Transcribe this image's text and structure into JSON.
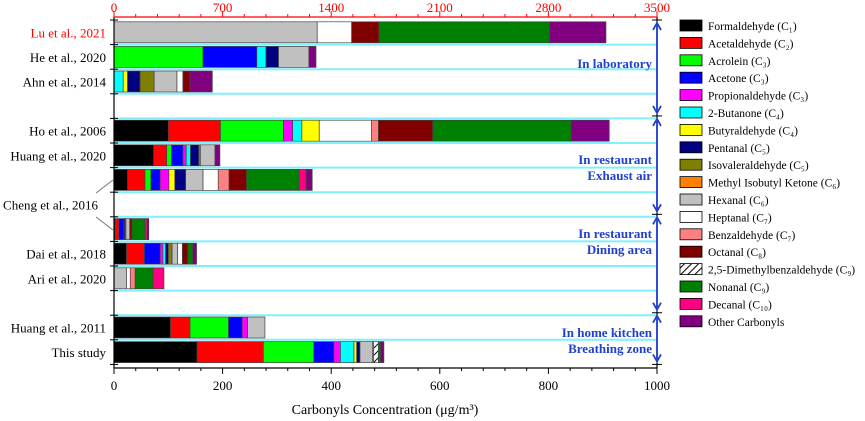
{
  "chart_data": {
    "type": "bar",
    "orientation": "horizontal-stacked",
    "xlabel": "Carbonyls Concentration (μg/m³)",
    "xlim_bottom": [
      0,
      1000
    ],
    "xticks_bottom": [
      "0",
      "200",
      "400",
      "600",
      "800",
      "1000"
    ],
    "xlim_top": [
      0,
      3500
    ],
    "xticks_top": [
      "0",
      "700",
      "1400",
      "2100",
      "2800",
      "3500"
    ],
    "top_axis_color": "#ff0000",
    "grid": false,
    "legend_position": "right",
    "compounds": [
      {
        "key": "form",
        "label": "Formaldehyde (C₁)",
        "color": "#000000"
      },
      {
        "key": "acet",
        "label": "Acetaldehyde (C₂)",
        "color": "#ff0000"
      },
      {
        "key": "acro",
        "label": "Acrolein (C₃)",
        "color": "#00ff00"
      },
      {
        "key": "acetone",
        "label": "Acetone (C₃)",
        "color": "#0000ff"
      },
      {
        "key": "prop",
        "label": "Propionaldehyde (C₃)",
        "color": "#ff00ff"
      },
      {
        "key": "buta",
        "label": "2-Butanone (C₄)",
        "color": "#00ffff"
      },
      {
        "key": "butyr",
        "label": "Butyraldehyde (C₄)",
        "color": "#ffff00"
      },
      {
        "key": "pent",
        "label": "Pentanal (C₅)",
        "color": "#000080"
      },
      {
        "key": "isov",
        "label": "Isovaleraldehyde (C₅)",
        "color": "#808000"
      },
      {
        "key": "mibk",
        "label": "Methyl Isobutyl Ketone (C₆)",
        "color": "#ff8000"
      },
      {
        "key": "hex",
        "label": "Hexanal (C₆)",
        "color": "#c0c0c0"
      },
      {
        "key": "hept",
        "label": "Heptanal (C₇)",
        "color": "#ffffff"
      },
      {
        "key": "benz",
        "label": "Benzaldehyde (C₇)",
        "color": "#ff8080"
      },
      {
        "key": "oct",
        "label": "Octanal (C₈)",
        "color": "#800000"
      },
      {
        "key": "dmb",
        "label": "2,5-Dimethylbenzaldehyde (C₉)",
        "color": "hatch"
      },
      {
        "key": "non",
        "label": "Nonanal (C₉)",
        "color": "#008000"
      },
      {
        "key": "dec",
        "label": "Decanal (C₁₀)",
        "color": "#ff0080"
      },
      {
        "key": "other",
        "label": "Other Carbonyls",
        "color": "#800080"
      }
    ],
    "studies": [
      {
        "label": "Lu et al., 2021",
        "axis": "top",
        "label_color": "#ff0000",
        "values": {
          "hex": 1310,
          "hept": 222,
          "oct": 176,
          "non": 1100,
          "other": 363
        }
      },
      {
        "label": "He et al., 2020",
        "axis": "bottom",
        "values": {
          "acro": 164,
          "acetone": 99,
          "buta": 17,
          "pent": 23,
          "hex": 56,
          "other": 13
        }
      },
      {
        "label": "Ahn et al., 2014",
        "axis": "bottom",
        "values": {
          "buta": 17,
          "butyr": 8,
          "pent": 23,
          "isov": 26,
          "hex": 42,
          "hept": 11,
          "oct": 13,
          "other": 41
        }
      },
      {
        "label": "Ho et al., 2006",
        "axis": "bottom",
        "values": {
          "form": 100,
          "acet": 96,
          "acro": 116,
          "prop": 17,
          "buta": 17,
          "butyr": 32,
          "hept": 96,
          "benz": 13,
          "oct": 100,
          "non": 255,
          "other": 70
        }
      },
      {
        "label": "Huang et al., 2020",
        "axis": "bottom",
        "values": {
          "form": 73,
          "acet": 24,
          "acro": 9,
          "acetone": 21,
          "prop": 6,
          "buta": 8,
          "pent": 15,
          "isov": 3,
          "hex": 27,
          "other": 9
        }
      },
      {
        "label": "Cheng et al., 2016",
        "axis": "bottom",
        "setting": "exhaust",
        "values": {
          "form": 25,
          "acet": 32,
          "acro": 11,
          "acetone": 17,
          "prop": 16,
          "butyr": 11,
          "pent": 20,
          "hex": 32,
          "hept": 28,
          "benz": 20,
          "oct": 32,
          "non": 97,
          "dec": 13,
          "other": 11
        }
      },
      {
        "label": "Cheng et al., 2016",
        "axis": "bottom",
        "setting": "dining",
        "values": {
          "form": 2,
          "acet": 7,
          "acetone": 9,
          "pent": 2,
          "isov": 2,
          "hex": 7,
          "oct": 4,
          "non": 24,
          "dec": 4,
          "other": 3
        }
      },
      {
        "label": "Dai et al., 2018",
        "axis": "bottom",
        "values": {
          "form": 23,
          "acet": 33,
          "acetone": 29,
          "prop": 5,
          "buta": 5,
          "pent": 5,
          "isov": 7,
          "hex": 10,
          "hept": 9,
          "oct": 10,
          "non": 9,
          "other": 7
        }
      },
      {
        "label": "Ari et al., 2020",
        "axis": "bottom",
        "values": {
          "hex": 23,
          "hept": 7,
          "benz": 9,
          "non": 33,
          "dec": 20
        }
      },
      {
        "label": "Huang et al., 2011",
        "axis": "bottom",
        "values": {
          "form": 104,
          "acet": 36,
          "acro": 71,
          "acetone": 25,
          "prop": 10,
          "hex": 32
        }
      },
      {
        "label": "This study",
        "axis": "bottom",
        "values": {
          "form": 153,
          "acet": 122,
          "acro": 93,
          "acetone": 37,
          "prop": 12,
          "buta": 25,
          "butyr": 5,
          "pent": 6,
          "hex": 23,
          "hept": 2,
          "dmb": 9,
          "non": 4,
          "other": 6
        }
      }
    ],
    "groups": [
      {
        "lines": [
          "In laboratory"
        ]
      },
      {
        "lines": [
          "In restaurant",
          "Exhaust air"
        ]
      },
      {
        "lines": [
          "In restaurant",
          "Dining area"
        ]
      },
      {
        "lines": [
          "In home kitchen",
          "Breathing zone"
        ]
      }
    ],
    "group_color": "#2040d0"
  }
}
